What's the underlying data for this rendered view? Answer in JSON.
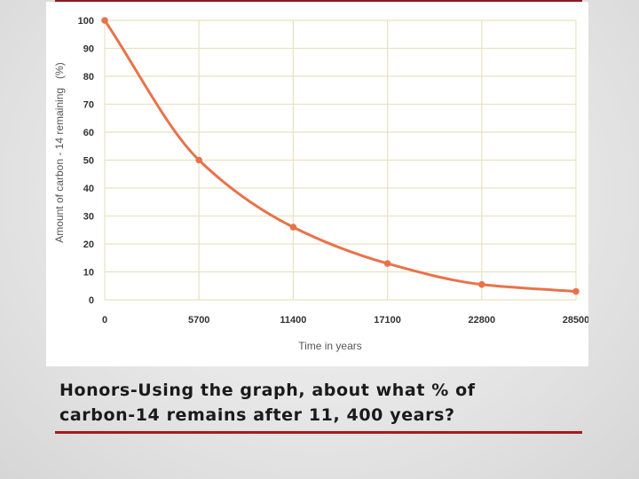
{
  "caption": "Honors-Using the graph, about what % of\ncarbon-14 remains after 11, 400 years?",
  "colors": {
    "curve": "#e8734a",
    "grid": "#e8e2c2",
    "rule": "#a31c1c"
  },
  "chart_data": {
    "type": "line",
    "title": "",
    "xlabel": "Time in years",
    "ylabel": "Amount of carbon - 14 remaining   (%)",
    "x_ticks": [
      "0",
      "5700",
      "11400",
      "17100",
      "22800",
      "28500"
    ],
    "y_ticks": [
      "0",
      "10",
      "20",
      "30",
      "40",
      "50",
      "60",
      "70",
      "80",
      "90",
      "100"
    ],
    "xlim": [
      0,
      28500
    ],
    "ylim": [
      0,
      100
    ],
    "grid": true,
    "series": [
      {
        "x": [
          0,
          5700,
          11400,
          17100,
          22800,
          28500
        ],
        "y": [
          100,
          50,
          26,
          13,
          5.5,
          3
        ]
      }
    ]
  }
}
